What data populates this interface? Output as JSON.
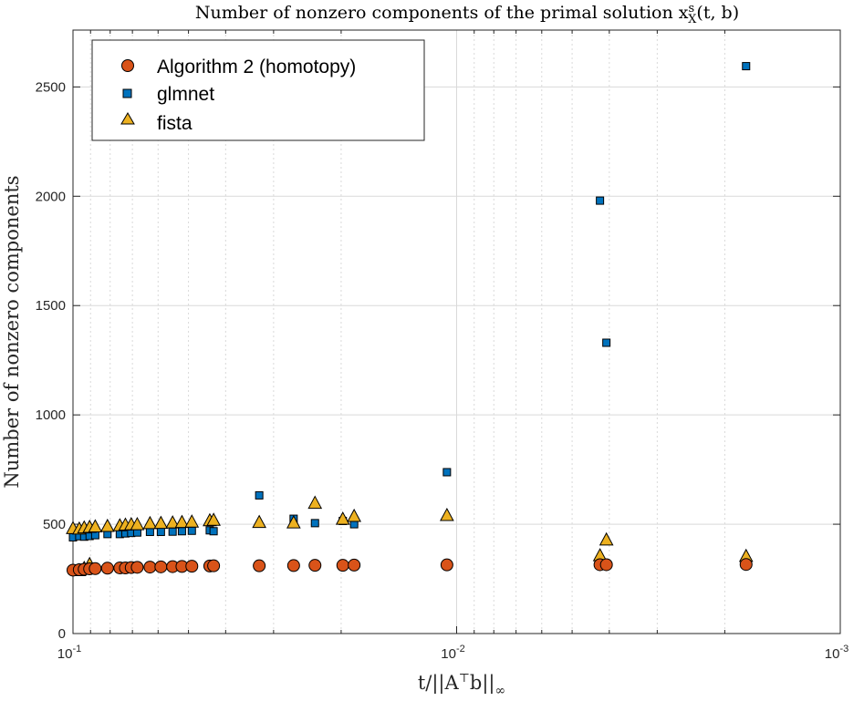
{
  "colors": {
    "homotopy": "#D95319",
    "glmnet": "#0072BD",
    "fista": "#EDB120",
    "grid": "#d9d9d9",
    "axis": "#262626"
  },
  "chart_data": {
    "type": "scatter",
    "title": "Number of nonzero components of the primal solution x",
    "title_sup": "s",
    "title_sub": "X",
    "title_tail": "(t, b)",
    "xlabel_prefix": "t/||A",
    "xlabel_sup": "⊤",
    "xlabel_mid": "b||",
    "xlabel_sub": "∞",
    "ylabel": "Number of nonzero components",
    "x_scale": "log",
    "x_reversed": true,
    "xlim": [
      0.1,
      0.001
    ],
    "ylim": [
      0,
      2760
    ],
    "yticks": [
      "0",
      "500",
      "1000",
      "1500",
      "2000",
      "2500"
    ],
    "ytick_values": [
      0,
      500,
      1000,
      1500,
      2000,
      2500
    ],
    "xticks": [
      {
        "base": "10",
        "exp": "-1",
        "value": 0.1
      },
      {
        "base": "10",
        "exp": "-2",
        "value": 0.01
      },
      {
        "base": "10",
        "exp": "-3",
        "value": 0.001
      }
    ],
    "grid": true,
    "legend_position": "top-left",
    "series": [
      {
        "name": "Algorithm 2 (homotopy)",
        "marker": "circle",
        "x": [
          0.1,
          0.0963,
          0.0935,
          0.0905,
          0.0875,
          0.0813,
          0.0755,
          0.073,
          0.0705,
          0.068,
          0.063,
          0.059,
          0.055,
          0.052,
          0.049,
          0.044,
          0.043,
          0.0327,
          0.0266,
          0.0234,
          0.0198,
          0.0185,
          0.0106,
          0.00423,
          0.00407,
          0.00176
        ],
        "y": [
          290,
          292,
          294,
          296,
          297,
          299,
          300,
          300,
          302,
          303,
          304,
          305,
          306,
          307,
          308,
          309,
          310,
          310,
          311,
          312,
          312,
          313,
          314,
          315,
          315,
          316
        ]
      },
      {
        "name": "glmnet",
        "marker": "square",
        "x": [
          0.1,
          0.0963,
          0.0935,
          0.0905,
          0.0875,
          0.0813,
          0.0755,
          0.073,
          0.0705,
          0.068,
          0.063,
          0.059,
          0.055,
          0.052,
          0.049,
          0.044,
          0.043,
          0.0327,
          0.0266,
          0.0234,
          0.0198,
          0.0185,
          0.0106,
          0.00423,
          0.00407,
          0.00176
        ],
        "y": [
          440,
          445,
          443,
          446,
          450,
          455,
          455,
          458,
          460,
          462,
          465,
          465,
          466,
          468,
          470,
          472,
          468,
          632,
          525,
          505,
          515,
          500,
          738,
          1980,
          1330,
          2595
        ]
      },
      {
        "name": "fista",
        "marker": "triangle",
        "x": [
          0.1,
          0.0963,
          0.0935,
          0.0905,
          0.0875,
          0.0813,
          0.0755,
          0.073,
          0.0705,
          0.068,
          0.063,
          0.059,
          0.055,
          0.052,
          0.049,
          0.044,
          0.043,
          0.0327,
          0.0266,
          0.0234,
          0.0198,
          0.0185,
          0.0106,
          0.00423,
          0.00407,
          0.00176,
          0.0963,
          0.0935,
          0.0905
        ],
        "y": [
          482,
          480,
          485,
          488,
          490,
          492,
          495,
          498,
          500,
          500,
          505,
          506,
          508,
          510,
          512,
          518,
          520,
          510,
          508,
          598,
          525,
          538,
          542,
          358,
          430,
          355,
          290,
          300,
          318
        ]
      }
    ]
  }
}
